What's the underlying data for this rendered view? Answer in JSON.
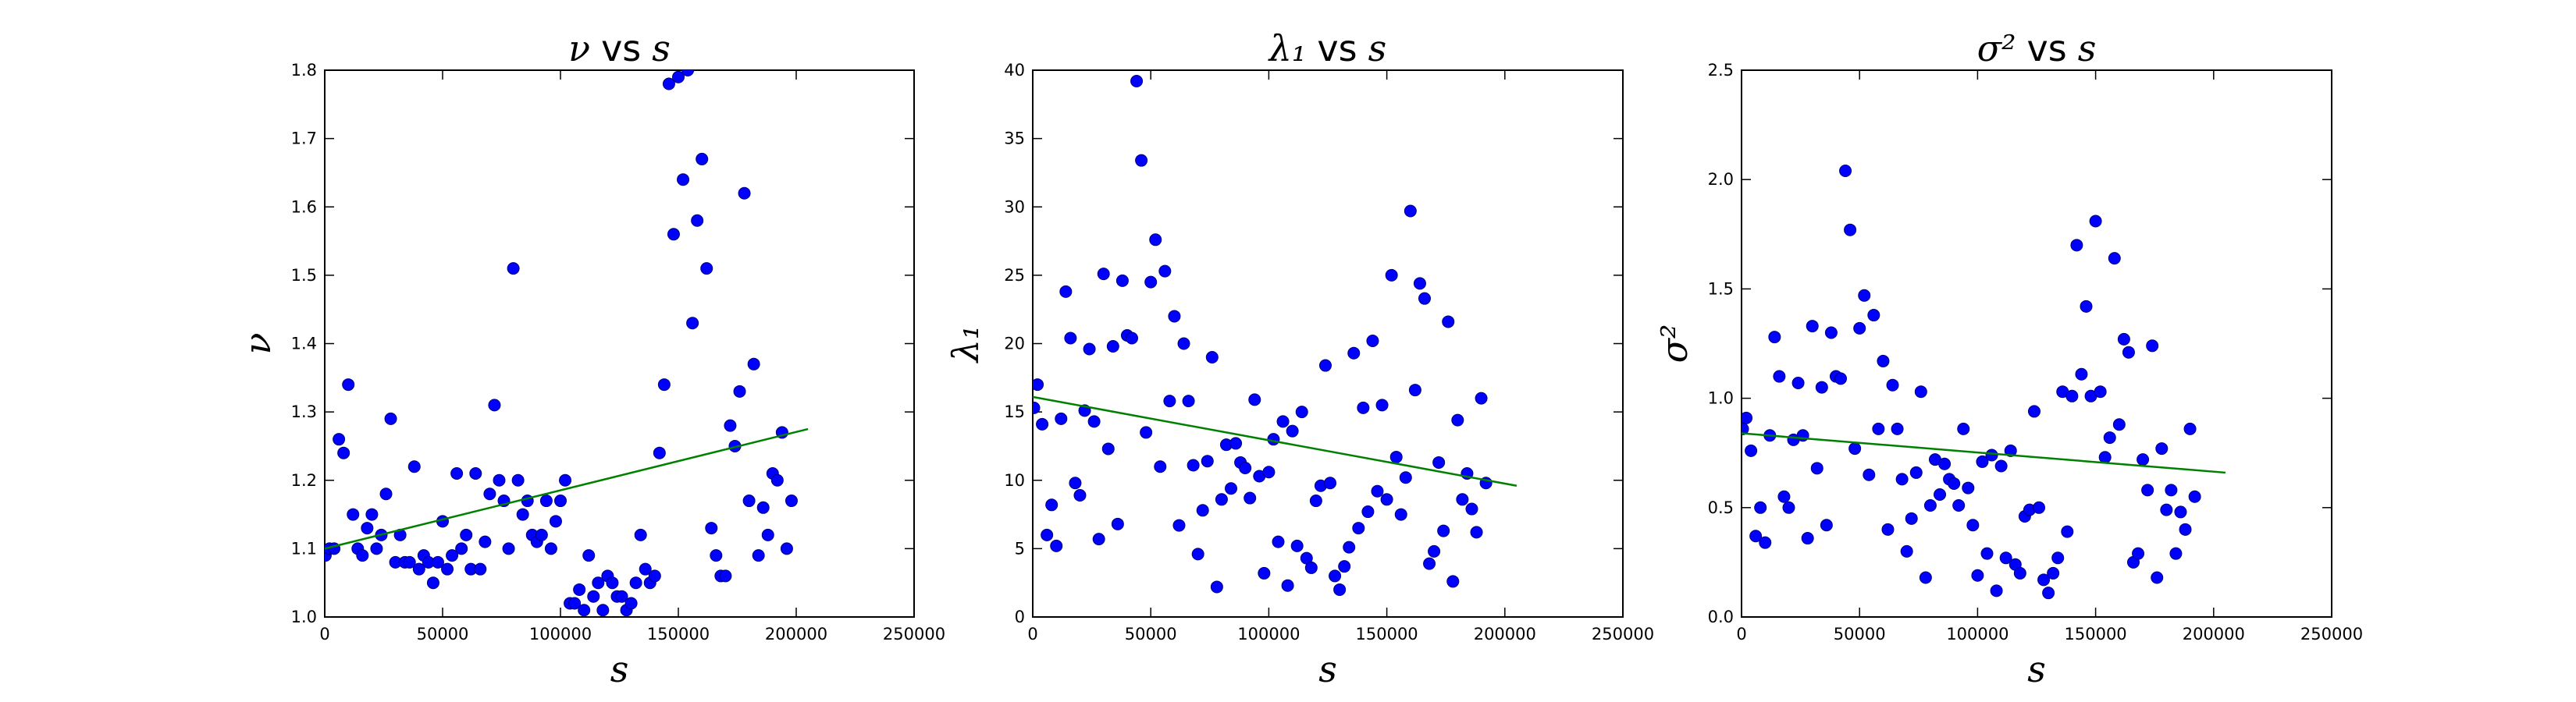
{
  "style": {
    "point_color": "#0000ff",
    "point_edge_color": "#000080",
    "fit_line_color": "#008000",
    "axes_color": "#000000",
    "background": "#ffffff"
  },
  "chart_data": [
    {
      "type": "scatter",
      "title_symbol": "ν",
      "title_vs": "vs",
      "title_var": "s",
      "xlabel": "s",
      "ylabel": "ν",
      "xlim": [
        0,
        250000
      ],
      "ylim": [
        1.0,
        1.8
      ],
      "xticks": [
        0,
        50000,
        100000,
        150000,
        200000,
        250000
      ],
      "xtick_labels": [
        "0",
        "50000",
        "100000",
        "150000",
        "200000",
        "250000"
      ],
      "yticks": [
        1.0,
        1.1,
        1.2,
        1.3,
        1.4,
        1.5,
        1.6,
        1.7,
        1.8
      ],
      "ytick_labels": [
        "1.0",
        "1.1",
        "1.2",
        "1.3",
        "1.4",
        "1.5",
        "1.6",
        "1.7",
        "1.8"
      ],
      "grid": false,
      "fit_line": {
        "x": [
          0,
          205000
        ],
        "y": [
          1.1,
          1.275
        ]
      },
      "points": [
        [
          300,
          1.09
        ],
        [
          2000,
          1.1
        ],
        [
          4000,
          1.1
        ],
        [
          6000,
          1.26
        ],
        [
          8000,
          1.24
        ],
        [
          10000,
          1.34
        ],
        [
          12000,
          1.15
        ],
        [
          14000,
          1.1
        ],
        [
          16000,
          1.09
        ],
        [
          18000,
          1.13
        ],
        [
          20000,
          1.15
        ],
        [
          22000,
          1.1
        ],
        [
          24000,
          1.12
        ],
        [
          26000,
          1.18
        ],
        [
          28000,
          1.29
        ],
        [
          30000,
          1.08
        ],
        [
          32000,
          1.12
        ],
        [
          34000,
          1.08
        ],
        [
          36000,
          1.08
        ],
        [
          38000,
          1.22
        ],
        [
          40000,
          1.07
        ],
        [
          42000,
          1.09
        ],
        [
          44000,
          1.08
        ],
        [
          46000,
          1.05
        ],
        [
          48000,
          1.08
        ],
        [
          50000,
          1.14
        ],
        [
          52000,
          1.07
        ],
        [
          54000,
          1.09
        ],
        [
          56000,
          1.21
        ],
        [
          58000,
          1.1
        ],
        [
          60000,
          1.12
        ],
        [
          62000,
          1.07
        ],
        [
          64000,
          1.21
        ],
        [
          66000,
          1.07
        ],
        [
          68000,
          1.11
        ],
        [
          70000,
          1.18
        ],
        [
          72000,
          1.31
        ],
        [
          74000,
          1.2
        ],
        [
          76000,
          1.17
        ],
        [
          78000,
          1.1
        ],
        [
          80000,
          1.51
        ],
        [
          82000,
          1.2
        ],
        [
          84000,
          1.15
        ],
        [
          86000,
          1.17
        ],
        [
          88000,
          1.12
        ],
        [
          90000,
          1.11
        ],
        [
          92000,
          1.12
        ],
        [
          94000,
          1.17
        ],
        [
          96000,
          1.1
        ],
        [
          98000,
          1.14
        ],
        [
          100000,
          1.17
        ],
        [
          102000,
          1.2
        ],
        [
          104000,
          1.02
        ],
        [
          106000,
          1.02
        ],
        [
          108000,
          1.04
        ],
        [
          110000,
          1.01
        ],
        [
          112000,
          1.09
        ],
        [
          114000,
          1.03
        ],
        [
          116000,
          1.05
        ],
        [
          118000,
          1.01
        ],
        [
          120000,
          1.06
        ],
        [
          122000,
          1.05
        ],
        [
          124000,
          1.03
        ],
        [
          126000,
          1.03
        ],
        [
          128000,
          1.01
        ],
        [
          130000,
          1.02
        ],
        [
          132000,
          1.05
        ],
        [
          134000,
          1.12
        ],
        [
          136000,
          1.07
        ],
        [
          138000,
          1.05
        ],
        [
          140000,
          1.06
        ],
        [
          142000,
          1.24
        ],
        [
          144000,
          1.34
        ],
        [
          146000,
          1.78
        ],
        [
          148000,
          1.56
        ],
        [
          150000,
          1.79
        ],
        [
          152000,
          1.64
        ],
        [
          154000,
          1.8
        ],
        [
          156000,
          1.43
        ],
        [
          158000,
          1.58
        ],
        [
          160000,
          1.67
        ],
        [
          162000,
          1.51
        ],
        [
          164000,
          1.13
        ],
        [
          166000,
          1.09
        ],
        [
          168000,
          1.06
        ],
        [
          170000,
          1.06
        ],
        [
          172000,
          1.28
        ],
        [
          174000,
          1.25
        ],
        [
          176000,
          1.33
        ],
        [
          178000,
          1.62
        ],
        [
          180000,
          1.17
        ],
        [
          182000,
          1.37
        ],
        [
          184000,
          1.09
        ],
        [
          186000,
          1.16
        ],
        [
          188000,
          1.12
        ],
        [
          190000,
          1.21
        ],
        [
          192000,
          1.2
        ],
        [
          194000,
          1.27
        ],
        [
          196000,
          1.1
        ],
        [
          198000,
          1.17
        ]
      ]
    },
    {
      "type": "scatter",
      "title_symbol": "λ₁",
      "title_vs": "vs",
      "title_var": "s",
      "xlabel": "s",
      "ylabel": "λ₁",
      "xlim": [
        0,
        250000
      ],
      "ylim": [
        0,
        40
      ],
      "xticks": [
        0,
        50000,
        100000,
        150000,
        200000,
        250000
      ],
      "xtick_labels": [
        "0",
        "50000",
        "100000",
        "150000",
        "200000",
        "250000"
      ],
      "yticks": [
        0,
        5,
        10,
        15,
        20,
        25,
        30,
        35,
        40
      ],
      "ytick_labels": [
        "0",
        "5",
        "10",
        "15",
        "20",
        "25",
        "30",
        "35",
        "40"
      ],
      "grid": false,
      "fit_line": {
        "x": [
          0,
          205000
        ],
        "y": [
          16.1,
          9.6
        ]
      },
      "points": [
        [
          500,
          15.3
        ],
        [
          2000,
          17.0
        ],
        [
          4000,
          14.1
        ],
        [
          6000,
          6.0
        ],
        [
          8000,
          8.2
        ],
        [
          10000,
          5.2
        ],
        [
          12000,
          14.5
        ],
        [
          14000,
          23.8
        ],
        [
          16000,
          20.4
        ],
        [
          18000,
          9.8
        ],
        [
          20000,
          8.9
        ],
        [
          22000,
          15.1
        ],
        [
          24000,
          19.6
        ],
        [
          26000,
          14.3
        ],
        [
          28000,
          5.7
        ],
        [
          30000,
          25.1
        ],
        [
          32000,
          12.3
        ],
        [
          34000,
          19.8
        ],
        [
          36000,
          6.8
        ],
        [
          38000,
          24.6
        ],
        [
          40000,
          20.6
        ],
        [
          42000,
          20.4
        ],
        [
          44000,
          39.2
        ],
        [
          46000,
          33.4
        ],
        [
          48000,
          13.5
        ],
        [
          50000,
          24.5
        ],
        [
          52000,
          27.6
        ],
        [
          54000,
          11.0
        ],
        [
          56000,
          25.3
        ],
        [
          58000,
          15.8
        ],
        [
          60000,
          22.0
        ],
        [
          62000,
          6.7
        ],
        [
          64000,
          20.0
        ],
        [
          66000,
          15.8
        ],
        [
          68000,
          11.1
        ],
        [
          70000,
          4.6
        ],
        [
          72000,
          7.8
        ],
        [
          74000,
          11.4
        ],
        [
          76000,
          19.0
        ],
        [
          78000,
          2.2
        ],
        [
          80000,
          8.6
        ],
        [
          82000,
          12.6
        ],
        [
          84000,
          9.4
        ],
        [
          86000,
          12.7
        ],
        [
          88000,
          11.3
        ],
        [
          90000,
          10.9
        ],
        [
          92000,
          8.7
        ],
        [
          94000,
          15.9
        ],
        [
          96000,
          10.3
        ],
        [
          98000,
          3.2
        ],
        [
          100000,
          10.6
        ],
        [
          102000,
          13.0
        ],
        [
          104000,
          5.5
        ],
        [
          106000,
          14.3
        ],
        [
          108000,
          2.3
        ],
        [
          110000,
          13.6
        ],
        [
          112000,
          5.2
        ],
        [
          114000,
          15.0
        ],
        [
          116000,
          4.3
        ],
        [
          118000,
          3.6
        ],
        [
          120000,
          8.5
        ],
        [
          122000,
          9.6
        ],
        [
          124000,
          18.4
        ],
        [
          126000,
          9.8
        ],
        [
          128000,
          3.0
        ],
        [
          130000,
          2.0
        ],
        [
          132000,
          3.7
        ],
        [
          134000,
          5.1
        ],
        [
          136000,
          19.3
        ],
        [
          138000,
          6.5
        ],
        [
          140000,
          15.3
        ],
        [
          142000,
          7.7
        ],
        [
          144000,
          20.2
        ],
        [
          146000,
          9.2
        ],
        [
          148000,
          15.5
        ],
        [
          150000,
          8.6
        ],
        [
          152000,
          25.0
        ],
        [
          154000,
          11.7
        ],
        [
          156000,
          7.5
        ],
        [
          158000,
          10.2
        ],
        [
          160000,
          29.7
        ],
        [
          162000,
          16.6
        ],
        [
          164000,
          24.4
        ],
        [
          166000,
          23.3
        ],
        [
          168000,
          3.9
        ],
        [
          170000,
          4.8
        ],
        [
          172000,
          11.3
        ],
        [
          174000,
          6.3
        ],
        [
          176000,
          21.6
        ],
        [
          178000,
          2.6
        ],
        [
          180000,
          14.4
        ],
        [
          182000,
          8.6
        ],
        [
          184000,
          10.5
        ],
        [
          186000,
          7.9
        ],
        [
          188000,
          6.2
        ],
        [
          190000,
          16.0
        ],
        [
          192000,
          9.8
        ]
      ]
    },
    {
      "type": "scatter",
      "title_symbol": "σ²",
      "title_vs": "vs",
      "title_var": "s",
      "xlabel": "s",
      "ylabel": "σ²",
      "xlim": [
        0,
        250000
      ],
      "ylim": [
        0.0,
        2.5
      ],
      "xticks": [
        0,
        50000,
        100000,
        150000,
        200000,
        250000
      ],
      "xtick_labels": [
        "0",
        "50000",
        "100000",
        "150000",
        "200000",
        "250000"
      ],
      "yticks": [
        0.0,
        0.5,
        1.0,
        1.5,
        2.0,
        2.5
      ],
      "ytick_labels": [
        "0.0",
        "0.5",
        "1.0",
        "1.5",
        "2.0",
        "2.5"
      ],
      "grid": false,
      "fit_line": {
        "x": [
          0,
          205000
        ],
        "y": [
          0.84,
          0.66
        ]
      },
      "points": [
        [
          500,
          0.86
        ],
        [
          2000,
          0.91
        ],
        [
          4000,
          0.76
        ],
        [
          6000,
          0.37
        ],
        [
          8000,
          0.5
        ],
        [
          10000,
          0.34
        ],
        [
          12000,
          0.83
        ],
        [
          14000,
          1.28
        ],
        [
          16000,
          1.1
        ],
        [
          18000,
          0.55
        ],
        [
          20000,
          0.5
        ],
        [
          22000,
          0.81
        ],
        [
          24000,
          1.07
        ],
        [
          26000,
          0.83
        ],
        [
          28000,
          0.36
        ],
        [
          30000,
          1.33
        ],
        [
          32000,
          0.68
        ],
        [
          34000,
          1.05
        ],
        [
          36000,
          0.42
        ],
        [
          38000,
          1.3
        ],
        [
          40000,
          1.1
        ],
        [
          42000,
          1.09
        ],
        [
          44000,
          2.04
        ],
        [
          46000,
          1.77
        ],
        [
          48000,
          0.77
        ],
        [
          50000,
          1.32
        ],
        [
          52000,
          1.47
        ],
        [
          54000,
          0.65
        ],
        [
          56000,
          1.38
        ],
        [
          58000,
          0.86
        ],
        [
          60000,
          1.17
        ],
        [
          62000,
          0.4
        ],
        [
          64000,
          1.06
        ],
        [
          66000,
          0.86
        ],
        [
          68000,
          0.63
        ],
        [
          70000,
          0.3
        ],
        [
          72000,
          0.45
        ],
        [
          74000,
          0.66
        ],
        [
          76000,
          1.03
        ],
        [
          78000,
          0.18
        ],
        [
          80000,
          0.51
        ],
        [
          82000,
          0.72
        ],
        [
          84000,
          0.56
        ],
        [
          86000,
          0.7
        ],
        [
          88000,
          0.63
        ],
        [
          90000,
          0.61
        ],
        [
          92000,
          0.51
        ],
        [
          94000,
          0.86
        ],
        [
          96000,
          0.59
        ],
        [
          98000,
          0.42
        ],
        [
          100000,
          0.19
        ],
        [
          102000,
          0.71
        ],
        [
          104000,
          0.29
        ],
        [
          106000,
          0.74
        ],
        [
          108000,
          0.12
        ],
        [
          110000,
          0.69
        ],
        [
          112000,
          0.27
        ],
        [
          114000,
          0.76
        ],
        [
          116000,
          0.24
        ],
        [
          118000,
          0.2
        ],
        [
          120000,
          0.46
        ],
        [
          122000,
          0.49
        ],
        [
          124000,
          0.94
        ],
        [
          126000,
          0.5
        ],
        [
          128000,
          0.17
        ],
        [
          130000,
          0.11
        ],
        [
          132000,
          0.2
        ],
        [
          134000,
          0.27
        ],
        [
          136000,
          1.03
        ],
        [
          138000,
          0.39
        ],
        [
          140000,
          1.01
        ],
        [
          142000,
          1.7
        ],
        [
          144000,
          1.11
        ],
        [
          146000,
          1.42
        ],
        [
          148000,
          1.01
        ],
        [
          150000,
          1.81
        ],
        [
          152000,
          1.03
        ],
        [
          154000,
          0.73
        ],
        [
          156000,
          0.82
        ],
        [
          158000,
          1.64
        ],
        [
          160000,
          0.88
        ],
        [
          162000,
          1.27
        ],
        [
          164000,
          1.21
        ],
        [
          166000,
          0.25
        ],
        [
          168000,
          0.29
        ],
        [
          170000,
          0.72
        ],
        [
          172000,
          0.58
        ],
        [
          174000,
          1.24
        ],
        [
          176000,
          0.18
        ],
        [
          178000,
          0.77
        ],
        [
          180000,
          0.49
        ],
        [
          182000,
          0.58
        ],
        [
          184000,
          0.29
        ],
        [
          186000,
          0.48
        ],
        [
          188000,
          0.4
        ],
        [
          190000,
          0.86
        ],
        [
          192000,
          0.55
        ]
      ]
    }
  ]
}
